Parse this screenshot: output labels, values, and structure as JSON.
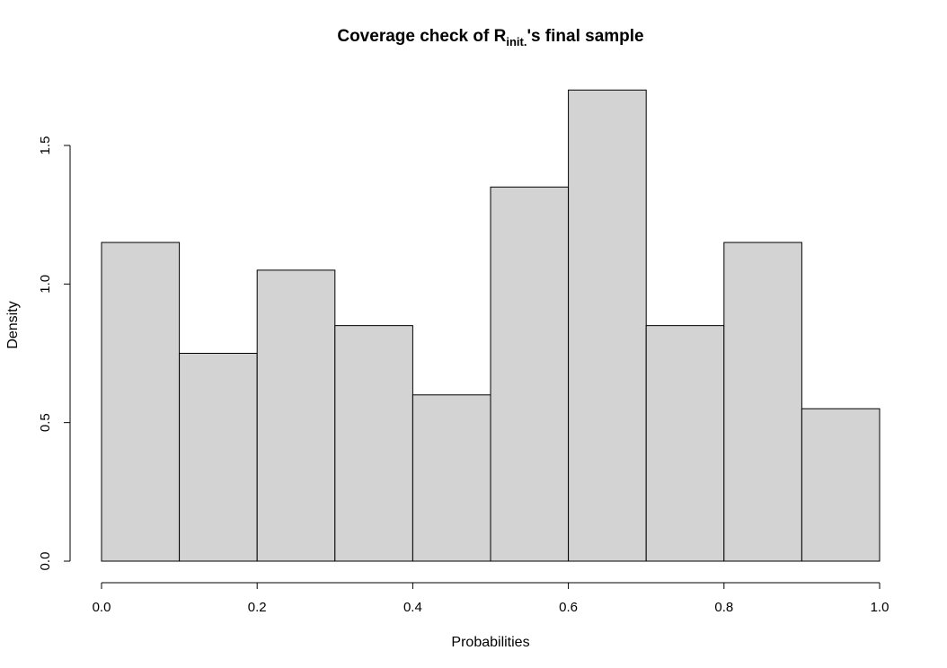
{
  "chart_data": {
    "type": "bar",
    "subtype": "histogram",
    "title": {
      "prefix": "Coverage check of R",
      "subscript": "init.",
      "suffix": "'s final sample"
    },
    "xlabel": "Probabilities",
    "ylabel": "Density",
    "xlim": [
      0.0,
      1.0
    ],
    "ylim": [
      0.0,
      1.7
    ],
    "bins": [
      {
        "x0": 0.0,
        "x1": 0.1,
        "value": 1.15
      },
      {
        "x0": 0.1,
        "x1": 0.2,
        "value": 0.75
      },
      {
        "x0": 0.2,
        "x1": 0.3,
        "value": 1.05
      },
      {
        "x0": 0.3,
        "x1": 0.4,
        "value": 0.85
      },
      {
        "x0": 0.4,
        "x1": 0.5,
        "value": 0.6
      },
      {
        "x0": 0.5,
        "x1": 0.6,
        "value": 1.35
      },
      {
        "x0": 0.6,
        "x1": 0.7,
        "value": 1.7
      },
      {
        "x0": 0.7,
        "x1": 0.8,
        "value": 0.85
      },
      {
        "x0": 0.8,
        "x1": 0.9,
        "value": 1.15
      },
      {
        "x0": 0.9,
        "x1": 1.0,
        "value": 0.55
      }
    ],
    "x_ticks": [
      0.0,
      0.2,
      0.4,
      0.6,
      0.8,
      1.0
    ],
    "x_tick_labels": [
      "0.0",
      "0.2",
      "0.4",
      "0.6",
      "0.8",
      "1.0"
    ],
    "y_ticks": [
      0.0,
      0.5,
      1.0,
      1.5
    ],
    "y_tick_labels": [
      "0.0",
      "0.5",
      "1.0",
      "1.5"
    ],
    "grid": false,
    "legend": "none",
    "colors": {
      "bar_fill": "#d3d3d3",
      "bar_stroke": "#000000",
      "axis": "#000000",
      "background": "#ffffff"
    }
  }
}
